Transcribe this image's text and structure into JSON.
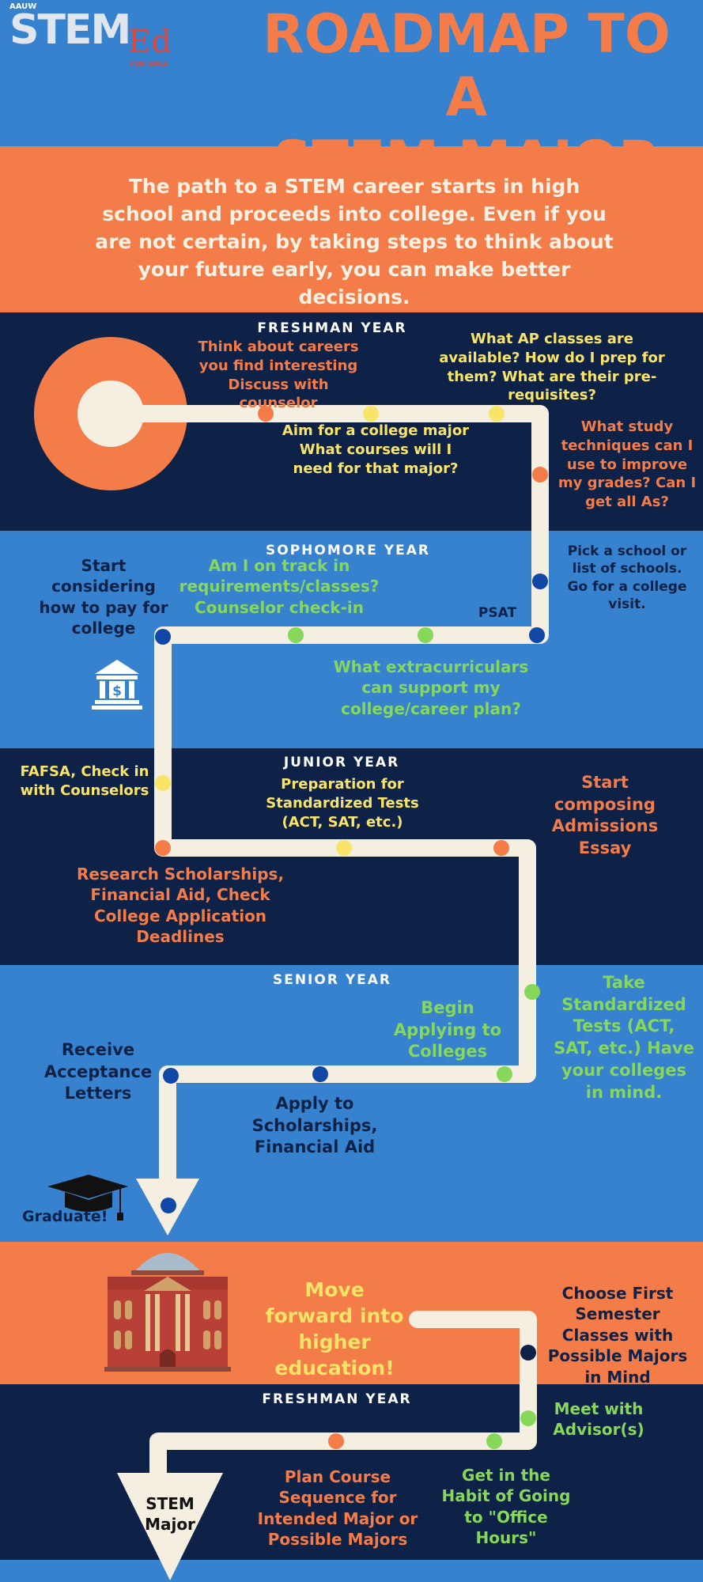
{
  "logo": {
    "small": "AAUW",
    "stem": "STEM",
    "ed": "Ed",
    "sub": "FOR GIRLS"
  },
  "title": {
    "line1": "ROADMAP TO A",
    "line2": "STEM MAJOR"
  },
  "intro": "The path to a STEM career starts in high school and proceeds into college. Even if you are not certain, by taking steps to think about your future early, you can make better decisions.",
  "colors": {
    "blue": "#3782cf",
    "navy": "#0e2248",
    "orange": "#f47c48",
    "cream": "#f5efe2",
    "yellow": "#f9e46a",
    "green": "#86d75a",
    "dark_blue_dot": "#1148a8"
  },
  "high_school": {
    "freshman": {
      "header": "FRESHMAN YEAR",
      "careers": "Think about careers you find interesting Discuss with counselor",
      "ap": "What AP classes are available? How do I prep for them? What are their pre-requisites?",
      "major": "Aim for a college major What courses will I need for that major?",
      "study": "What study techniques can I use to improve my grades? Can I get all As?"
    },
    "sophomore": {
      "header": "SOPHOMORE YEAR",
      "pay": "Start considering how to pay for college",
      "track": "Am I on track in requirements/classes? Counselor check-in",
      "psat": "PSAT",
      "school": "Pick a school or list of schools. Go for a college visit.",
      "extra": "What extracurriculars can support my college/career plan?"
    },
    "junior": {
      "header": "JUNIOR YEAR",
      "fafsa": "FAFSA, Check in with Counselors",
      "prep": "Preparation for Standardized Tests (ACT, SAT, etc.)",
      "essay": "Start composing Admissions Essay",
      "research": "Research Scholarships, Financial Aid, Check College Application Deadlines"
    },
    "senior": {
      "header": "SENIOR YEAR",
      "take": "Take Standardized Tests (ACT, SAT, etc.) Have your colleges in mind.",
      "begin": "Begin Applying to Colleges",
      "receive": "Receive Acceptance Letters",
      "apply": "Apply to Scholarships, Financial Aid",
      "graduate": "Graduate!"
    }
  },
  "college": {
    "move": "Move forward into higher education!",
    "choose": "Choose First Semester Classes with Possible Majors in Mind",
    "header": "FRESHMAN YEAR",
    "advisor": "Meet with Advisor(s)",
    "office": "Get in the Habit of Going to \"Office Hours\"",
    "plan": "Plan Course Sequence for Intended Major or Possible Majors",
    "arrow": "STEM Major"
  }
}
